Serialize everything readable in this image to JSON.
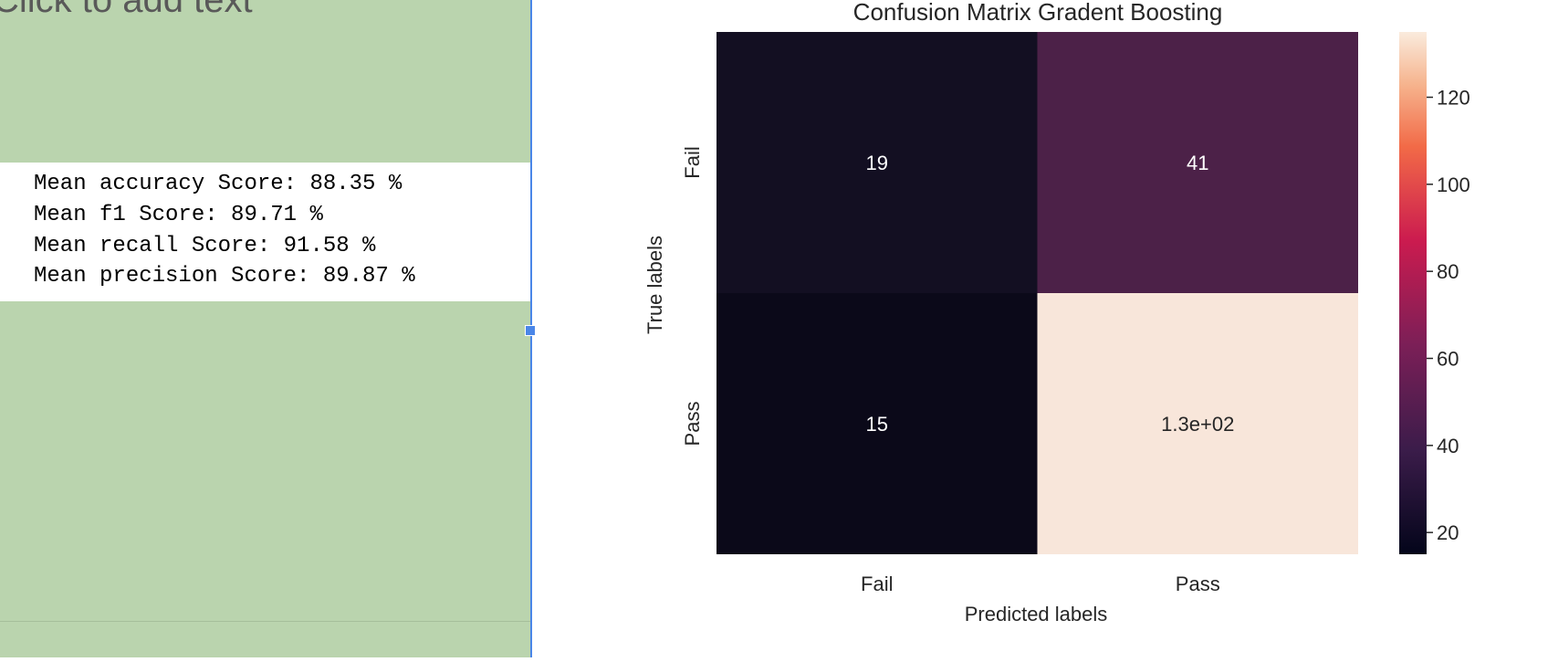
{
  "slide": {
    "placeholder_text": "Click to add text",
    "metrics": [
      "Mean accuracy Score: 88.35 %",
      "Mean f1 Score: 89.71 %",
      "Mean recall Score: 91.58 %",
      "Mean precision Score: 89.87 %"
    ]
  },
  "chart_data": {
    "type": "heatmap",
    "title": "Confusion Matrix Gradent Boosting",
    "xlabel": "Predicted labels",
    "ylabel": "True labels",
    "x_categories": [
      "Fail",
      "Pass"
    ],
    "y_categories": [
      "Fail",
      "Pass"
    ],
    "values": [
      [
        19,
        41
      ],
      [
        15,
        130
      ]
    ],
    "annotations": [
      [
        "19",
        "41"
      ],
      [
        "15",
        "1.3e+02"
      ]
    ],
    "colorbar_ticks": [
      "20",
      "40",
      "60",
      "80",
      "100",
      "120"
    ],
    "colorbar_values": [
      20,
      40,
      60,
      80,
      100,
      120
    ],
    "colorbar_range": [
      15,
      135
    ],
    "colors": {
      "c19": "#130f22",
      "c41": "#4c2148",
      "c15": "#0b0919",
      "c130": "#f8e6da"
    }
  }
}
